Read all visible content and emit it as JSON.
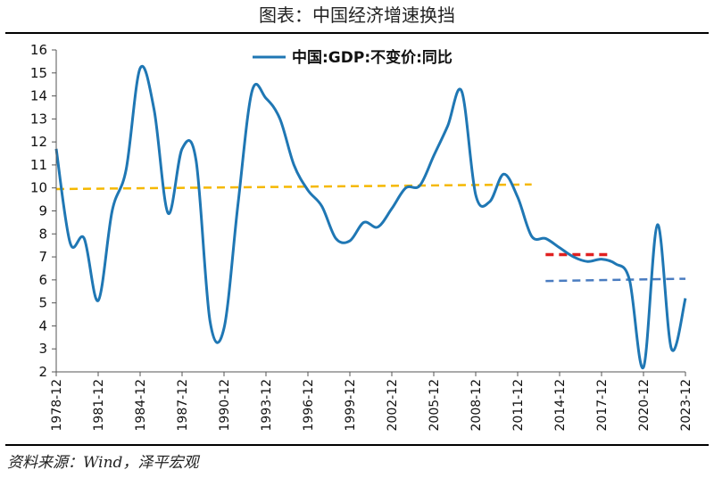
{
  "header": {
    "title": "图表：中国经济增速换挡"
  },
  "footer": {
    "source": "资料来源：Wind，泽平宏观"
  },
  "chart_data": {
    "type": "line",
    "series": [
      {
        "name": "中国:GDP:不变价:同比",
        "color": "#1f77b4",
        "x": [
          1978,
          1979,
          1980,
          1981,
          1982,
          1983,
          1984,
          1985,
          1986,
          1987,
          1988,
          1989,
          1990,
          1991,
          1992,
          1993,
          1994,
          1995,
          1996,
          1997,
          1998,
          1999,
          2000,
          2001,
          2002,
          2003,
          2004,
          2005,
          2006,
          2007,
          2008,
          2009,
          2010,
          2011,
          2012,
          2013,
          2014,
          2015,
          2016,
          2017,
          2018,
          2019,
          2020,
          2021,
          2022,
          2023
        ],
        "values": [
          11.7,
          7.6,
          7.8,
          5.1,
          9.0,
          10.8,
          15.2,
          13.4,
          8.9,
          11.7,
          11.2,
          4.2,
          3.9,
          9.3,
          14.2,
          13.9,
          13.0,
          11.0,
          9.9,
          9.2,
          7.8,
          7.7,
          8.5,
          8.3,
          9.1,
          10.0,
          10.1,
          11.4,
          12.7,
          14.2,
          9.7,
          9.4,
          10.6,
          9.6,
          7.9,
          7.8,
          7.4,
          7.0,
          6.8,
          6.9,
          6.7,
          6.0,
          2.2,
          8.4,
          3.0,
          5.2
        ]
      }
    ],
    "reference_lines": [
      {
        "color": "#f5b800",
        "x_start": 1978,
        "x_end": 2012,
        "y_start": 9.95,
        "y_end": 10.15
      },
      {
        "color": "#e02020",
        "x_start": 2013,
        "x_end": 2017.5,
        "y_start": 7.1,
        "y_end": 7.1
      },
      {
        "color": "#4a7cc0",
        "x_start": 2013,
        "x_end": 2023,
        "y_start": 5.95,
        "y_end": 6.05
      }
    ],
    "xlabels": [
      "1978-12",
      "1981-12",
      "1984-12",
      "1987-12",
      "1990-12",
      "1993-12",
      "1996-12",
      "1999-12",
      "2002-12",
      "2005-12",
      "2008-12",
      "2011-12",
      "2014-12",
      "2017-12",
      "2020-12",
      "2023-12"
    ],
    "yticks": [
      2,
      3,
      4,
      5,
      6,
      7,
      8,
      9,
      10,
      11,
      12,
      13,
      14,
      15,
      16
    ],
    "ylim": [
      2,
      16
    ],
    "xlim": [
      1978,
      2023
    ],
    "legend_position": "top-center",
    "grid": false
  }
}
